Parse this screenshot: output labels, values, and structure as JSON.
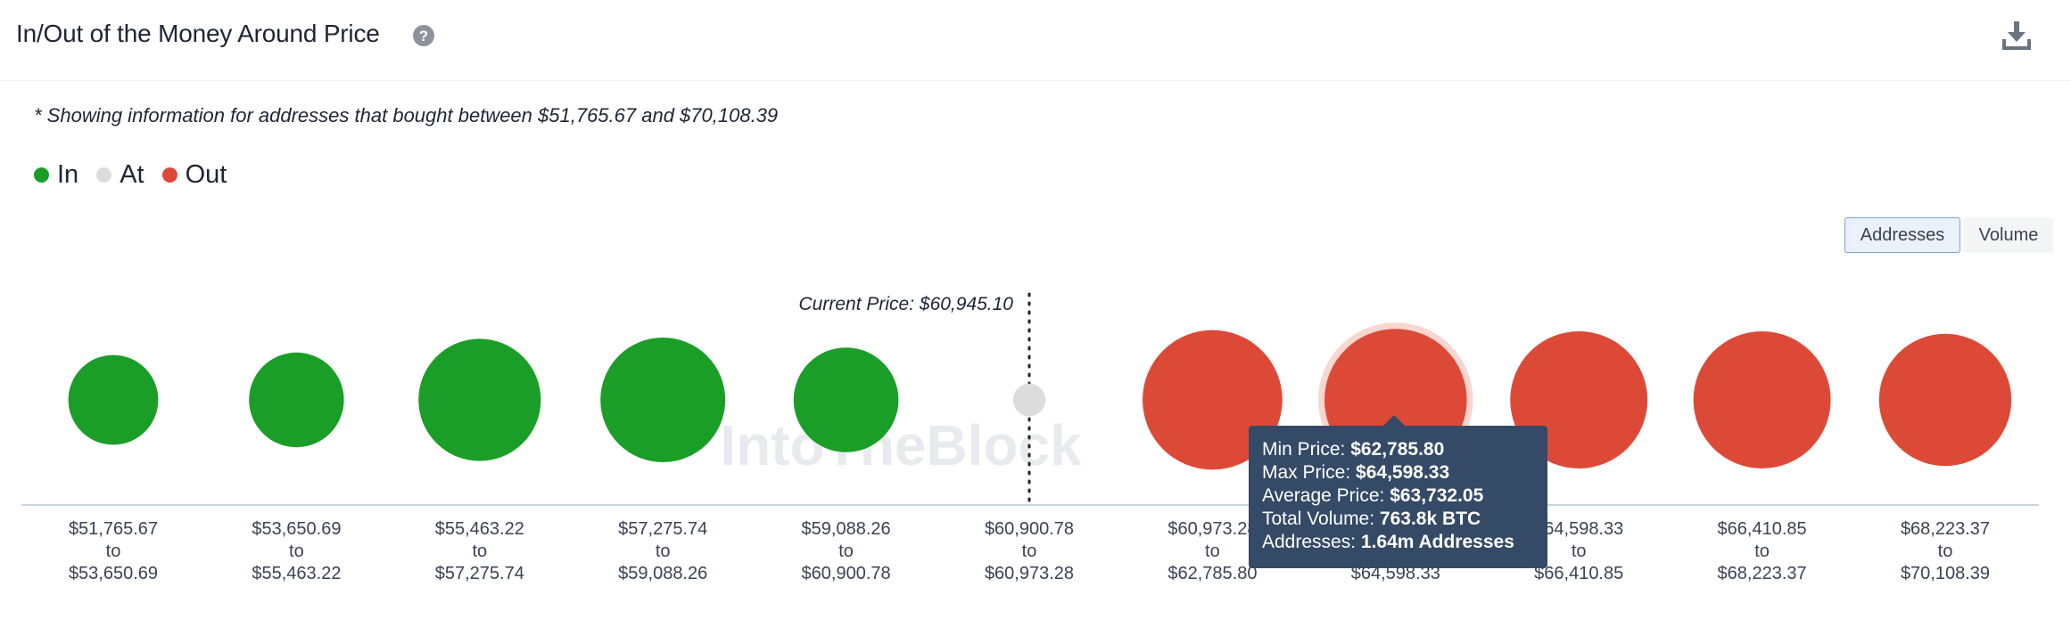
{
  "header": {
    "title": "In/Out of the Money Around Price",
    "help_icon": "question-circle-icon",
    "download_icon": "download-icon"
  },
  "note": "* Showing information for addresses that bought between $51,765.67 and $70,108.39",
  "legend": [
    {
      "label": "In",
      "color": "#1a9e27"
    },
    {
      "label": "At",
      "color": "#dcdcdc"
    },
    {
      "label": "Out",
      "color": "#dc4a37"
    }
  ],
  "toggle": {
    "addresses_label": "Addresses",
    "volume_label": "Volume",
    "active": "Addresses"
  },
  "watermark": "IntoTheBlock",
  "tooltip": {
    "min_label": "Min Price: ",
    "min_value": "$62,785.80",
    "max_label": "Max Price: ",
    "max_value": "$64,598.33",
    "avg_label": "Average Price: ",
    "avg_value": "$63,732.05",
    "vol_label": "Total Volume: ",
    "vol_value": "763.8k BTC",
    "addr_label": "Addresses: ",
    "addr_value": "1.64m Addresses"
  },
  "chart_data": {
    "type": "bubble",
    "current_price_label": "Current Price: $60,945.10",
    "current_price_bin_index": 5,
    "highlighted_bin_index": 7,
    "colors": {
      "In": "#1a9e27",
      "At": "#dcdcdc",
      "Out": "#dc4a37"
    },
    "bins": [
      {
        "from": "$51,765.67",
        "to": "$53,650.69",
        "status": "In",
        "size": 0.72
      },
      {
        "from": "$53,650.69",
        "to": "$55,463.22",
        "status": "In",
        "size": 0.76
      },
      {
        "from": "$55,463.22",
        "to": "$57,275.74",
        "status": "In",
        "size": 0.98
      },
      {
        "from": "$57,275.74",
        "to": "$59,088.26",
        "status": "In",
        "size": 1.0
      },
      {
        "from": "$59,088.26",
        "to": "$60,900.78",
        "status": "In",
        "size": 0.84
      },
      {
        "from": "$60,900.78",
        "to": "$60,973.28",
        "status": "At",
        "size": 0.26
      },
      {
        "from": "$60,973.28",
        "to": "$62,785.80",
        "status": "Out",
        "size": 1.12
      },
      {
        "from": "$62,785.80",
        "to": "$64,598.33",
        "status": "Out",
        "size": 1.14
      },
      {
        "from": "$64,598.33",
        "to": "$66,410.85",
        "status": "Out",
        "size": 1.1
      },
      {
        "from": "$66,410.85",
        "to": "$68,223.37",
        "status": "Out",
        "size": 1.1
      },
      {
        "from": "$68,223.37",
        "to": "$70,108.39",
        "status": "Out",
        "size": 1.06
      }
    ]
  }
}
